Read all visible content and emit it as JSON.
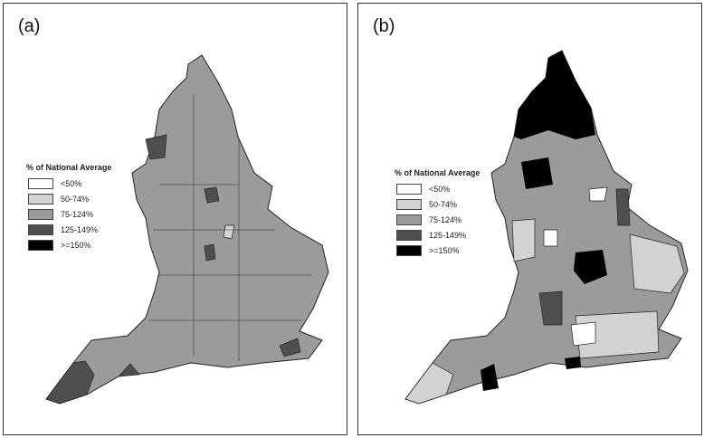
{
  "panels": [
    {
      "label": "(a)",
      "legend_title": "% of National Average"
    },
    {
      "label": "(b)",
      "legend_title": "% of National Average"
    }
  ],
  "legend": [
    {
      "label": "<50%",
      "color": "#ffffff"
    },
    {
      "label": "50-74%",
      "color": "#d2d2d2"
    },
    {
      "label": "75-124%",
      "color": "#9b9b9b"
    },
    {
      "label": "125-149%",
      "color": "#4f4f4f"
    },
    {
      "label": ">=150%",
      "color": "#000000"
    }
  ]
}
